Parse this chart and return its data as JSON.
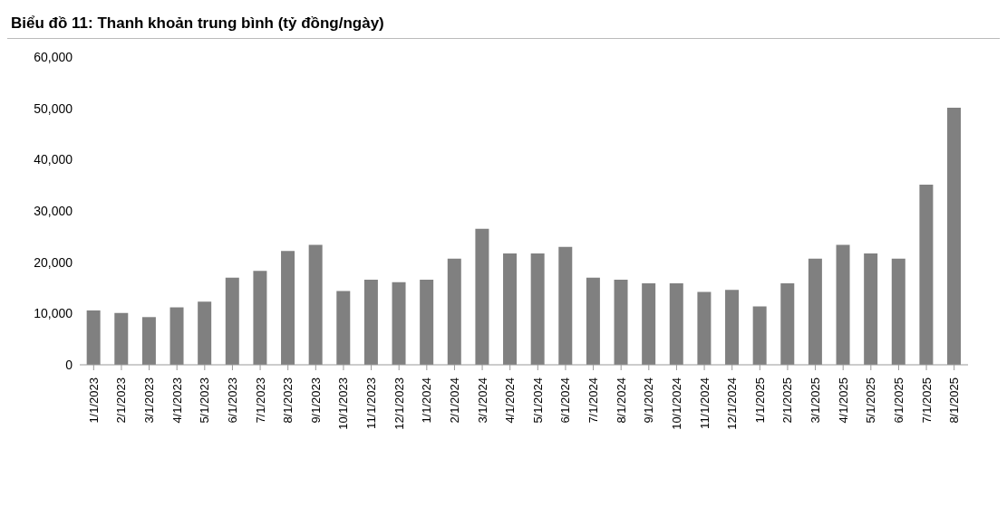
{
  "chart_data": {
    "type": "bar",
    "title": "Biểu đồ 11: Thanh khoản trung bình (tỷ đồng/ngày)",
    "categories": [
      "1/1/2023",
      "2/1/2023",
      "3/1/2023",
      "4/1/2023",
      "5/1/2023",
      "6/1/2023",
      "7/1/2023",
      "8/1/2023",
      "9/1/2023",
      "10/1/2023",
      "11/1/2023",
      "12/1/2023",
      "1/1/2024",
      "2/1/2024",
      "3/1/2024",
      "4/1/2024",
      "5/1/2024",
      "6/1/2024",
      "7/1/2024",
      "8/1/2024",
      "9/1/2024",
      "10/1/2024",
      "11/1/2024",
      "12/1/2024",
      "1/1/2025",
      "2/1/2025",
      "3/1/2025",
      "4/1/2025",
      "5/1/2025",
      "6/1/2025",
      "7/1/2025",
      "8/1/2025"
    ],
    "values": [
      10600,
      10100,
      9300,
      11200,
      12300,
      17000,
      18300,
      22200,
      23400,
      14400,
      16600,
      16100,
      16600,
      20700,
      26500,
      21700,
      21700,
      23000,
      17000,
      16600,
      15900,
      15900,
      14200,
      14600,
      11400,
      15900,
      20700,
      23400,
      21700,
      20700,
      35100,
      50100
    ],
    "color": "#808080",
    "ylim": [
      0,
      60000
    ],
    "yticks": [
      0,
      {
        "value": 10000,
        "label": "10,000"
      },
      {
        "value": 20000,
        "label": "20,000"
      },
      {
        "value": 30000,
        "label": "30,000"
      },
      {
        "value": 40000,
        "label": "40,000"
      },
      {
        "value": 50000,
        "label": "50,000"
      },
      {
        "value": 60000,
        "label": "60,000"
      }
    ],
    "grid": false,
    "legend": false
  }
}
